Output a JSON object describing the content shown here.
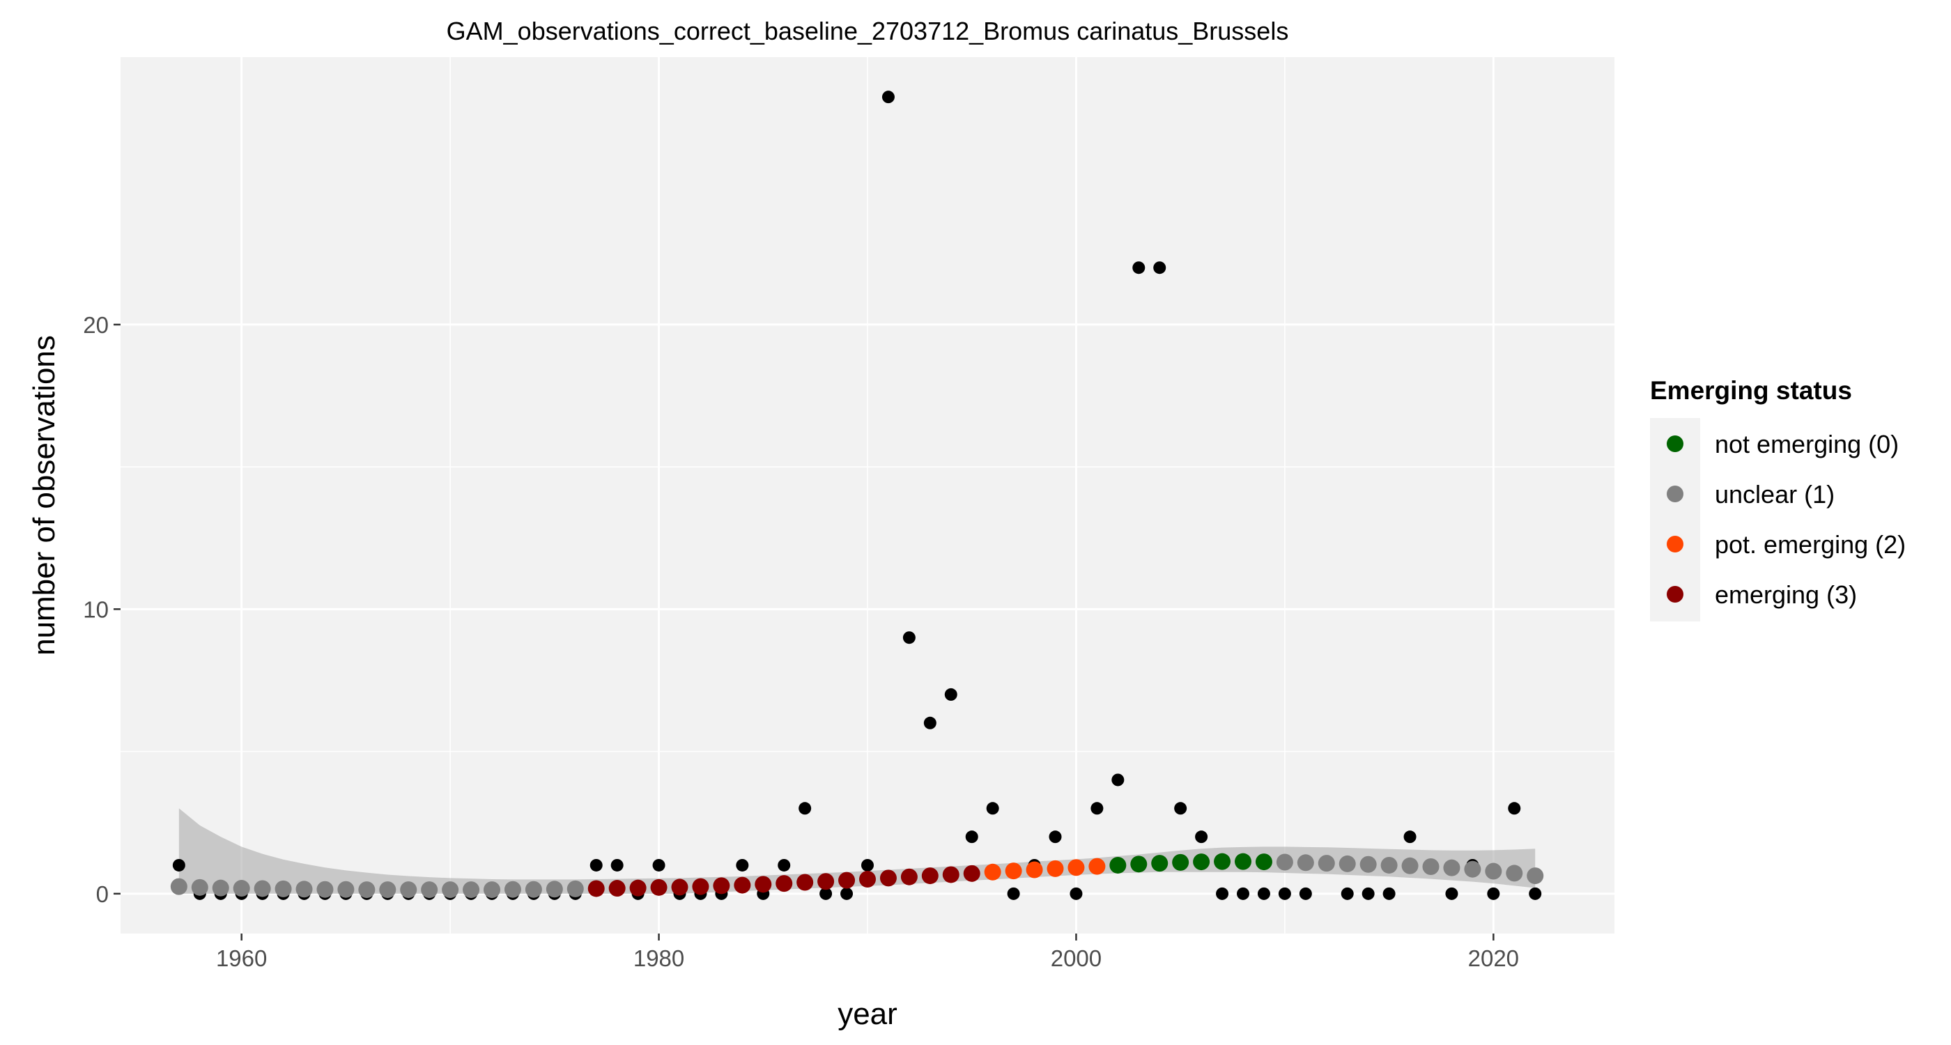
{
  "chart_data": {
    "type": "scatter",
    "title": "GAM_observations_correct_baseline_2703712_Bromus carinatus_Brussels",
    "xlabel": "year",
    "ylabel": "number of observations",
    "xlim": [
      1954.2,
      2025.8
    ],
    "ylim": [
      -1.4,
      29.4
    ],
    "x_ticks": [
      1960,
      1980,
      2000,
      2020
    ],
    "x_tick_labels": [
      "1960",
      "1980",
      "2000",
      "2020"
    ],
    "y_ticks": [
      0,
      10,
      20
    ],
    "y_tick_labels": [
      "0",
      "10",
      "20"
    ],
    "grid": true,
    "background": "#f2f2f2",
    "legend": {
      "title": "Emerging status",
      "position": "right",
      "entries": [
        {
          "label": "not emerging (0)",
          "color": "#006400"
        },
        {
          "label": "unclear (1)",
          "color": "#808080"
        },
        {
          "label": "pot. emerging (2)",
          "color": "#ff4500"
        },
        {
          "label": "emerging (3)",
          "color": "#8b0000"
        }
      ]
    },
    "observations": {
      "color": "#000000",
      "x": [
        1957,
        1958,
        1959,
        1960,
        1961,
        1962,
        1963,
        1964,
        1965,
        1966,
        1967,
        1968,
        1969,
        1970,
        1971,
        1972,
        1973,
        1974,
        1975,
        1976,
        1977,
        1978,
        1979,
        1980,
        1981,
        1982,
        1983,
        1984,
        1985,
        1986,
        1987,
        1988,
        1989,
        1990,
        1991,
        1992,
        1993,
        1994,
        1995,
        1996,
        1997,
        1998,
        1999,
        2000,
        2001,
        2002,
        2003,
        2004,
        2005,
        2006,
        2007,
        2008,
        2009,
        2010,
        2011,
        2012,
        2013,
        2014,
        2015,
        2016,
        2017,
        2018,
        2019,
        2020,
        2021,
        2022
      ],
      "y": [
        1,
        0,
        0,
        0,
        0,
        0,
        0,
        0,
        0,
        0,
        0,
        0,
        0,
        0,
        0,
        0,
        0,
        0,
        0,
        0,
        1,
        1,
        0,
        1,
        0,
        0,
        0,
        1,
        0,
        1,
        3,
        0,
        0,
        1,
        28,
        9,
        6,
        7,
        2,
        3,
        0,
        1,
        2,
        0,
        3,
        4,
        22,
        22,
        3,
        2,
        0,
        0,
        0,
        0,
        0,
        1,
        0,
        0,
        0,
        2,
        1,
        0,
        1,
        0,
        3,
        0
      ]
    },
    "fit": {
      "x": [
        1957,
        1958,
        1959,
        1960,
        1961,
        1962,
        1963,
        1964,
        1965,
        1966,
        1967,
        1968,
        1969,
        1970,
        1971,
        1972,
        1973,
        1974,
        1975,
        1976,
        1977,
        1978,
        1979,
        1980,
        1981,
        1982,
        1983,
        1984,
        1985,
        1986,
        1987,
        1988,
        1989,
        1990,
        1991,
        1992,
        1993,
        1994,
        1995,
        1996,
        1997,
        1998,
        1999,
        2000,
        2001,
        2002,
        2003,
        2004,
        2005,
        2006,
        2007,
        2008,
        2009,
        2010,
        2011,
        2012,
        2013,
        2014,
        2015,
        2016,
        2017,
        2018,
        2019,
        2020,
        2021,
        2022
      ],
      "y": [
        0.25,
        0.22,
        0.2,
        0.19,
        0.18,
        0.17,
        0.16,
        0.15,
        0.15,
        0.14,
        0.14,
        0.14,
        0.14,
        0.14,
        0.14,
        0.14,
        0.15,
        0.15,
        0.16,
        0.17,
        0.18,
        0.19,
        0.2,
        0.22,
        0.23,
        0.25,
        0.28,
        0.3,
        0.33,
        0.36,
        0.4,
        0.43,
        0.47,
        0.51,
        0.55,
        0.59,
        0.63,
        0.67,
        0.71,
        0.76,
        0.8,
        0.84,
        0.88,
        0.92,
        0.96,
        1.0,
        1.04,
        1.07,
        1.1,
        1.12,
        1.13,
        1.13,
        1.12,
        1.11,
        1.09,
        1.07,
        1.05,
        1.03,
        1.0,
        0.98,
        0.95,
        0.91,
        0.86,
        0.79,
        0.72,
        0.63
      ],
      "status": [
        1,
        1,
        1,
        1,
        1,
        1,
        1,
        1,
        1,
        1,
        1,
        1,
        1,
        1,
        1,
        1,
        1,
        1,
        1,
        1,
        3,
        3,
        3,
        3,
        3,
        3,
        3,
        3,
        3,
        3,
        3,
        3,
        3,
        3,
        3,
        3,
        3,
        3,
        3,
        2,
        2,
        2,
        2,
        2,
        2,
        0,
        0,
        0,
        0,
        0,
        0,
        0,
        0,
        1,
        1,
        1,
        1,
        1,
        1,
        1,
        1,
        1,
        1,
        1,
        1,
        1
      ],
      "ci_lower": [
        0.0,
        0.0,
        0.0,
        0.0,
        0.0,
        0.0,
        0.0,
        0.0,
        0.0,
        0.0,
        0.0,
        0.0,
        0.0,
        0.0,
        0.0,
        0.0,
        0.0,
        0.0,
        0.0,
        0.0,
        0.0,
        0.0,
        0.0,
        0.0,
        0.0,
        0.03,
        0.06,
        0.09,
        0.12,
        0.15,
        0.18,
        0.21,
        0.24,
        0.27,
        0.3,
        0.34,
        0.38,
        0.42,
        0.46,
        0.5,
        0.54,
        0.58,
        0.62,
        0.66,
        0.69,
        0.72,
        0.74,
        0.76,
        0.76,
        0.76,
        0.76,
        0.76,
        0.75,
        0.73,
        0.71,
        0.69,
        0.66,
        0.63,
        0.6,
        0.56,
        0.52,
        0.47,
        0.42,
        0.36,
        0.28,
        0.2
      ],
      "ci_upper": [
        3.0,
        2.4,
        2.0,
        1.65,
        1.4,
        1.2,
        1.05,
        0.92,
        0.82,
        0.74,
        0.67,
        0.62,
        0.58,
        0.55,
        0.53,
        0.51,
        0.5,
        0.5,
        0.5,
        0.5,
        0.51,
        0.52,
        0.53,
        0.54,
        0.55,
        0.57,
        0.59,
        0.61,
        0.64,
        0.67,
        0.7,
        0.73,
        0.76,
        0.8,
        0.84,
        0.88,
        0.92,
        0.96,
        1.0,
        1.04,
        1.08,
        1.13,
        1.17,
        1.21,
        1.26,
        1.32,
        1.38,
        1.45,
        1.52,
        1.58,
        1.62,
        1.64,
        1.65,
        1.65,
        1.64,
        1.63,
        1.61,
        1.59,
        1.57,
        1.55,
        1.53,
        1.52,
        1.52,
        1.53,
        1.55,
        1.58
      ]
    }
  }
}
